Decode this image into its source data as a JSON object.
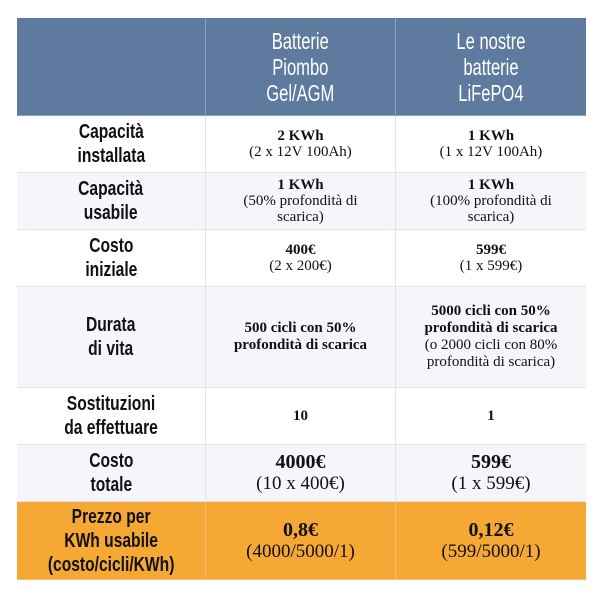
{
  "header": {
    "col1": "Batterie\nPiombo\nGel/AGM",
    "col2": "Le nostre\nbatterie\nLiFePO4"
  },
  "rows": [
    {
      "label": "Capacità\ninstallata",
      "a_main": "2 KWh",
      "a_sub": "(2 x 12V 100Ah)",
      "b_main": "1 KWh",
      "b_sub": "(1 x 12V 100Ah)"
    },
    {
      "label": "Capacità\nusabile",
      "a_main": "1 KWh",
      "a_sub": "(50% profondità di\nscarica)",
      "b_main": "1 KWh",
      "b_sub": "(100% profondità di\nscarica)"
    },
    {
      "label": "Costo\niniziale",
      "a_main": "400€",
      "a_sub": "(2 x 200€)",
      "b_main": "599€",
      "b_sub": "(1 x 599€)"
    },
    {
      "label": "Durata\ndi vita",
      "a_main": "500 cicli con 50%\nprofondità di scarica",
      "b_main": "5000 cicli con 50%\nprofondità di scarica",
      "b_sub": "(o 2000 cicli con 80%\nprofondità di scarica)"
    },
    {
      "label": "Sostituzioni\nda effettuare",
      "a_main": "10",
      "b_main": "1"
    },
    {
      "label": "Costo\ntotale",
      "a_main": "4000€",
      "a_sub": "(10 x 400€)",
      "b_main": "599€",
      "b_sub": "(1 x 599€)"
    },
    {
      "label": "Prezzo per\nKWh usabile\n(costo/cicli/KWh)",
      "a_main": "0,8€",
      "a_sub": "(4000/5000/1)",
      "b_main": "0,12€",
      "b_sub": "(599/5000/1)"
    }
  ],
  "colors": {
    "header": "#5e7a9e",
    "highlight": "#f5a834"
  }
}
